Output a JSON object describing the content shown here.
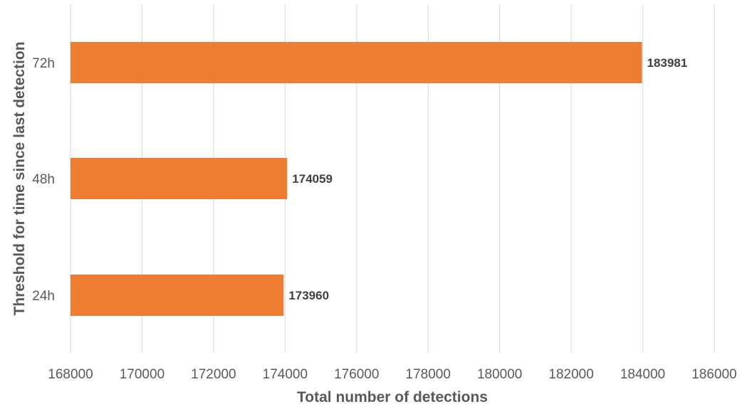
{
  "chart_data": {
    "type": "bar",
    "orientation": "horizontal",
    "categories": [
      "72h",
      "48h",
      "24h"
    ],
    "values": [
      183981,
      174059,
      173960
    ],
    "data_labels": [
      "183981",
      "174059",
      "173960"
    ],
    "title": "",
    "xlabel": "Total number of detections",
    "ylabel": "Threshold for time since last detection",
    "xlim": [
      168000,
      186000
    ],
    "xticks": [
      "168000",
      "170000",
      "172000",
      "174000",
      "176000",
      "178000",
      "180000",
      "182000",
      "184000",
      "186000"
    ],
    "grid": "vertical",
    "legend": "none",
    "bar_color": "#ED7D31",
    "grid_color": "#D9D9D9"
  }
}
